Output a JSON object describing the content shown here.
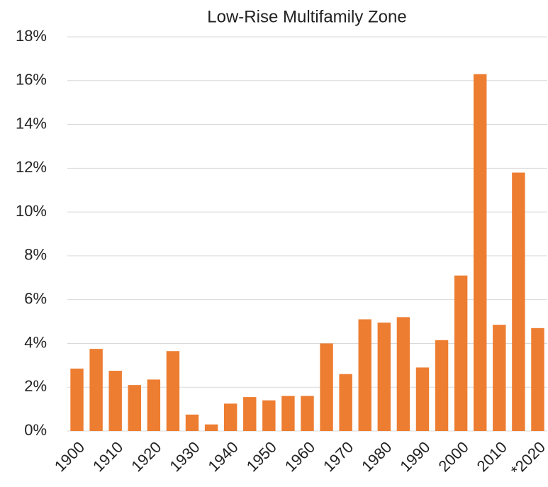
{
  "chart_data": {
    "type": "bar",
    "title": "Low-Rise Multifamily Zone",
    "categories": [
      "1900",
      null,
      "1910",
      null,
      "1920",
      null,
      "1930",
      null,
      "1940",
      null,
      "1950",
      null,
      "1960",
      null,
      "1970",
      null,
      "1980",
      null,
      "1990",
      null,
      "2000",
      null,
      "2010",
      null,
      "*2020"
    ],
    "values": [
      2.85,
      3.75,
      2.75,
      2.1,
      2.35,
      3.65,
      0.75,
      0.3,
      1.25,
      1.55,
      1.4,
      1.6,
      1.6,
      4.0,
      2.6,
      5.1,
      4.95,
      5.2,
      2.9,
      4.15,
      7.1,
      16.3,
      4.85,
      11.8,
      4.7
    ],
    "color": "#ed7d31",
    "ylim": [
      0,
      18
    ],
    "yticks": [
      {
        "value": 0,
        "label": "0%"
      },
      {
        "value": 2,
        "label": "2%"
      },
      {
        "value": 4,
        "label": "4%"
      },
      {
        "value": 6,
        "label": "6%"
      },
      {
        "value": 8,
        "label": "8%"
      },
      {
        "value": 10,
        "label": "10%"
      },
      {
        "value": 12,
        "label": "12%"
      },
      {
        "value": 14,
        "label": "14%"
      },
      {
        "value": 16,
        "label": "16%"
      },
      {
        "value": 18,
        "label": "18%"
      }
    ],
    "grid": true
  }
}
